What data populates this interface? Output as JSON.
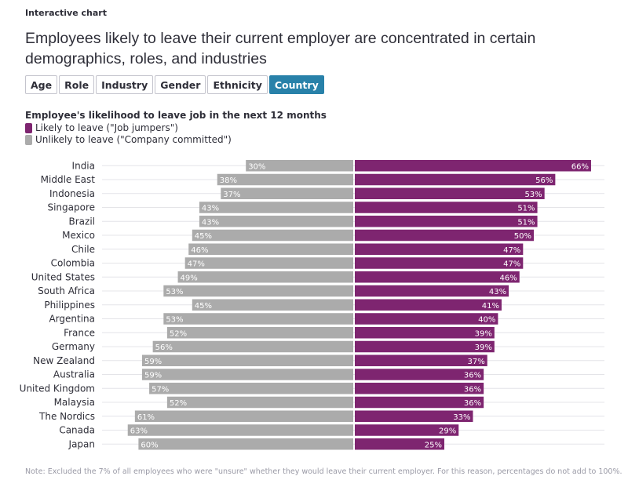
{
  "eyebrow": "Interactive chart",
  "title": "Employees likely to leave their current employer are concentrated in certain demographics, roles, and industries",
  "tabs": [
    {
      "label": "Age",
      "active": false
    },
    {
      "label": "Role",
      "active": false
    },
    {
      "label": "Industry",
      "active": false
    },
    {
      "label": "Gender",
      "active": false
    },
    {
      "label": "Ethnicity",
      "active": false
    },
    {
      "label": "Country",
      "active": true
    }
  ],
  "colors": {
    "leave": "#7e2570",
    "stay": "#ababab",
    "grid": "#e4e4e8",
    "active_tab": "#2881a9"
  },
  "legend": {
    "leave": "Likely to leave (\"Job jumpers\")",
    "stay": "Unlikely to leave (\"Company committed\")"
  },
  "chart_data": {
    "type": "bar",
    "orientation": "diverging-horizontal",
    "title": "Employee's likelihood to leave job in the next 12 months",
    "categories": [
      "India",
      "Middle East",
      "Indonesia",
      "Singapore",
      "Brazil",
      "Mexico",
      "Chile",
      "Colombia",
      "United States",
      "South Africa",
      "Philippines",
      "Argentina",
      "France",
      "Germany",
      "New Zealand",
      "Australia",
      "United Kingdom",
      "Malaysia",
      "The Nordics",
      "Canada",
      "Japan"
    ],
    "series": [
      {
        "name": "Likely to leave (\"Job jumpers\")",
        "values": [
          66,
          56,
          53,
          51,
          51,
          50,
          47,
          47,
          46,
          43,
          41,
          40,
          39,
          39,
          37,
          36,
          36,
          36,
          33,
          29,
          25
        ]
      },
      {
        "name": "Unlikely to leave (\"Company committed\")",
        "values": [
          30,
          38,
          37,
          43,
          43,
          45,
          46,
          47,
          49,
          53,
          45,
          53,
          52,
          56,
          59,
          59,
          57,
          52,
          61,
          63,
          60
        ]
      }
    ],
    "value_suffix": "%"
  },
  "note": "Note: Excluded the 7% of all employees who were \"unsure\" whether they would leave their current employer. For this reason, percentages do not add to 100%."
}
